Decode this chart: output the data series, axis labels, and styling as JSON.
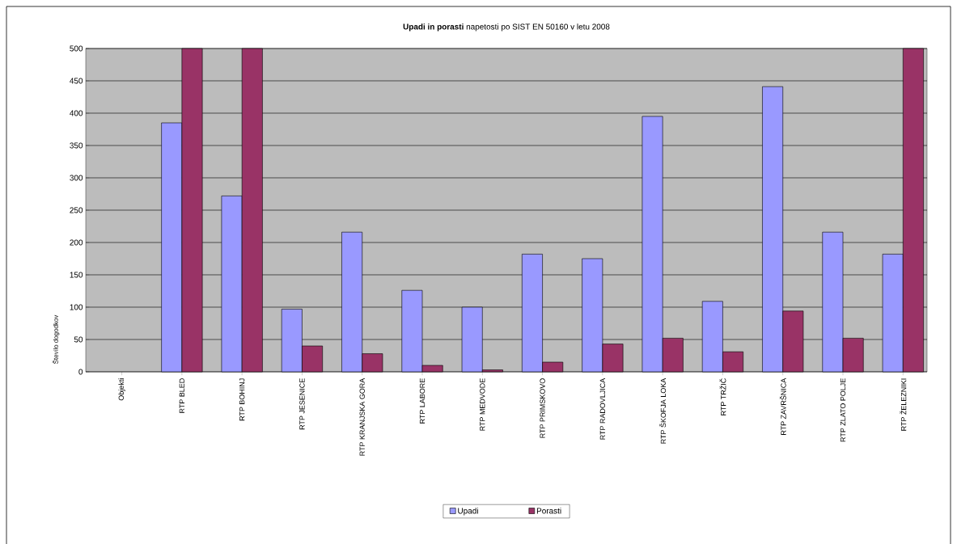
{
  "chart_data": {
    "type": "bar",
    "title": "**Upadi in porasti** napetosti po SIST EN 50160 v letu 2008",
    "ylabel": "Število dogodkov",
    "categories": [
      "Objekti",
      "RTP BLED",
      "RTP BOHINJ",
      "RTP JESENICE",
      "RTP KRANJSKA GORA",
      "RTP LABORE",
      "RTP MEDVODE",
      "RTP PRIMSKOVO",
      "RTP RADOVLJICA",
      "RTP ŠKOFJA LOKA",
      "RTP TRŽIČ",
      "RTP ZAVRŠNICA",
      "RTP ZLATO POLJE",
      "RTP ŽELEZNIKI"
    ],
    "series": [
      {
        "name": "Upadi",
        "color": "#9999ff",
        "values": [
          null,
          385,
          272,
          97,
          216,
          126,
          100,
          182,
          175,
          395,
          109,
          441,
          216,
          182
        ]
      },
      {
        "name": "Porasti",
        "color": "#993366",
        "values": [
          null,
          500,
          500,
          40,
          28,
          10,
          3,
          15,
          43,
          52,
          31,
          94,
          52,
          500
        ]
      }
    ],
    "ylim": [
      0,
      500
    ],
    "yticks": [
      0,
      50,
      100,
      150,
      200,
      250,
      300,
      350,
      400,
      450,
      500
    ],
    "grid": "y",
    "legend": "bottom"
  }
}
